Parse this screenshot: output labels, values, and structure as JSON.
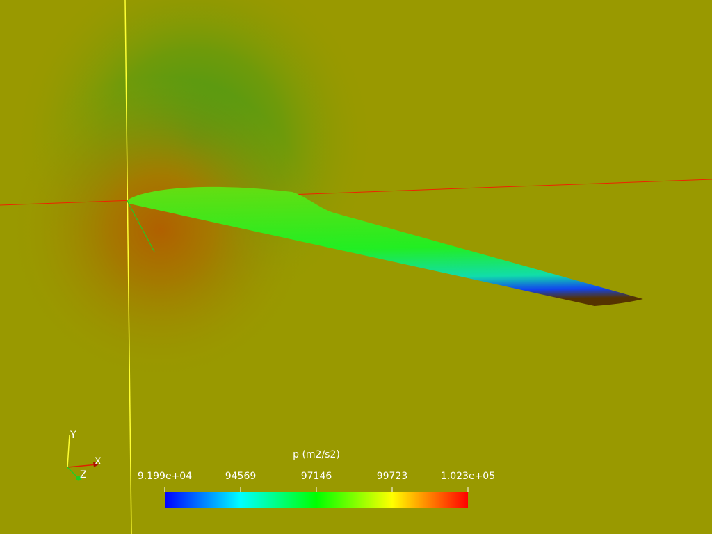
{
  "colorbar": {
    "title": "p (m2/s2)",
    "range": [
      91992,
      102300
    ],
    "ticks": [
      {
        "value": 91992,
        "label": "9.199e+04"
      },
      94569,
      97146,
      99723,
      {
        "value": 102300,
        "label": "1.023e+05"
      }
    ]
  },
  "orientation_axes": {
    "x": "X",
    "y": "Y",
    "z": "Z"
  }
}
